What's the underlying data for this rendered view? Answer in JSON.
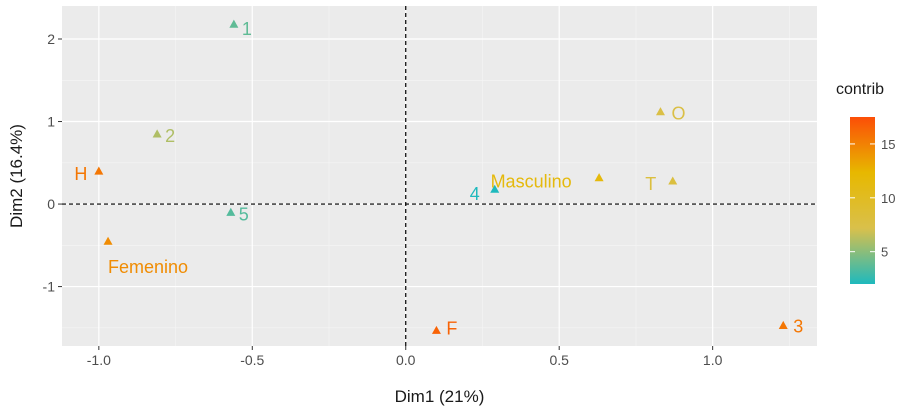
{
  "chart_data": {
    "type": "scatter",
    "xlabel": "Dim1 (21%)",
    "ylabel": "Dim2 (16.4%)",
    "xlim": [
      -1.12,
      1.34
    ],
    "ylim": [
      -1.72,
      2.4
    ],
    "x_ticks": [
      -1.0,
      -0.5,
      0.0,
      0.5,
      1.0
    ],
    "x_tick_labels": [
      "-1.0",
      "-0.5",
      "0.0",
      "0.5",
      "1.0"
    ],
    "y_ticks": [
      -1,
      0,
      1,
      2
    ],
    "y_tick_labels": [
      "-1",
      "0",
      "1",
      "2"
    ],
    "grid": true,
    "reference_lines": {
      "x": 0,
      "y": 0,
      "style": "dashed"
    },
    "marker": "triangle",
    "points": [
      {
        "label": "1",
        "x": -0.56,
        "y": 2.18,
        "contrib": 3.8
      },
      {
        "label": "2",
        "x": -0.81,
        "y": 0.85,
        "contrib": 6.0
      },
      {
        "label": "H",
        "x": -1.0,
        "y": 0.4,
        "contrib": 15.5
      },
      {
        "label": "5",
        "x": -0.57,
        "y": -0.1,
        "contrib": 3.5
      },
      {
        "label": "Femenino",
        "x": -0.97,
        "y": -0.45,
        "contrib": 14.5
      },
      {
        "label": "4",
        "x": 0.29,
        "y": 0.18,
        "contrib": 2.0
      },
      {
        "label": "Masculino",
        "x": 0.63,
        "y": 0.32,
        "contrib": 11.5
      },
      {
        "label": "O",
        "x": 0.83,
        "y": 1.12,
        "contrib": 7.5
      },
      {
        "label": "T",
        "x": 0.87,
        "y": 0.28,
        "contrib": 8.0
      },
      {
        "label": "F",
        "x": 0.1,
        "y": -1.53,
        "contrib": 16.5
      },
      {
        "label": "3",
        "x": 1.23,
        "y": -1.47,
        "contrib": 15.5
      }
    ],
    "legend": {
      "title": "contrib",
      "position": "right",
      "range": [
        2,
        17.5
      ],
      "ticks": [
        5,
        10,
        15
      ],
      "tick_labels": [
        "5",
        "10",
        "15"
      ],
      "gradient": [
        "#1eb9bd",
        "#d9c04b",
        "#e7b800",
        "#fc4e07"
      ]
    }
  }
}
